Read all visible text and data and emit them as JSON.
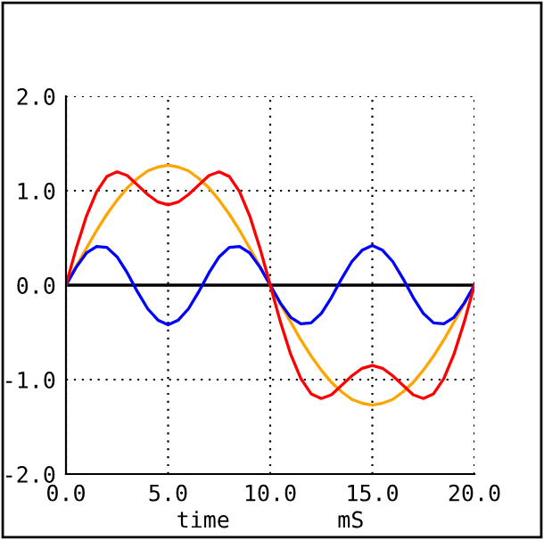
{
  "chart_data": {
    "type": "line",
    "xlabel": "time        mS",
    "x": [
      0,
      0.5,
      1,
      1.5,
      2,
      2.5,
      3,
      3.5,
      4,
      4.5,
      5,
      5.5,
      6,
      6.5,
      7,
      7.5,
      8,
      8.5,
      9,
      9.5,
      10,
      10.5,
      11,
      11.5,
      12,
      12.5,
      13,
      13.5,
      14,
      14.5,
      15,
      15.5,
      16,
      16.5,
      17,
      17.5,
      18,
      18.5,
      19,
      19.5,
      20
    ],
    "series": [
      {
        "color": "#ffa500",
        "values": [
          0,
          0.2,
          0.39,
          0.58,
          0.75,
          0.9,
          1.03,
          1.13,
          1.21,
          1.25,
          1.27,
          1.25,
          1.21,
          1.13,
          1.03,
          0.9,
          0.75,
          0.58,
          0.39,
          0.2,
          0,
          -0.2,
          -0.39,
          -0.58,
          -0.75,
          -0.9,
          -1.03,
          -1.13,
          -1.21,
          -1.25,
          -1.27,
          -1.25,
          -1.21,
          -1.13,
          -1.03,
          -0.9,
          -0.75,
          -0.58,
          -0.39,
          -0.2,
          0
        ]
      },
      {
        "color": "#0000ff",
        "values": [
          0,
          0.19,
          0.34,
          0.41,
          0.4,
          0.3,
          0.13,
          -0.07,
          -0.25,
          -0.37,
          -0.42,
          -0.37,
          -0.25,
          -0.07,
          0.13,
          0.3,
          0.4,
          0.41,
          0.34,
          0.19,
          0,
          -0.19,
          -0.34,
          -0.41,
          -0.4,
          -0.3,
          -0.13,
          0.07,
          0.25,
          0.37,
          0.42,
          0.37,
          0.25,
          0.07,
          -0.13,
          -0.3,
          -0.4,
          -0.41,
          -0.34,
          -0.19,
          0
        ]
      },
      {
        "color": "#ff0000",
        "values": [
          0,
          0.39,
          0.73,
          0.99,
          1.15,
          1.2,
          1.16,
          1.06,
          0.96,
          0.88,
          0.85,
          0.88,
          0.96,
          1.06,
          1.16,
          1.2,
          1.15,
          0.99,
          0.73,
          0.39,
          0,
          -0.39,
          -0.73,
          -0.99,
          -1.15,
          -1.2,
          -1.16,
          -1.06,
          -0.96,
          -0.88,
          -0.85,
          -0.88,
          -0.96,
          -1.06,
          -1.16,
          -1.2,
          -1.15,
          -0.99,
          -0.73,
          -0.39,
          0
        ]
      }
    ],
    "xlim": [
      0,
      20
    ],
    "ylim": [
      -2,
      2
    ],
    "xticks": [
      {
        "value": 0,
        "label": "0.0"
      },
      {
        "value": 5,
        "label": "5.0"
      },
      {
        "value": 10,
        "label": "10.0"
      },
      {
        "value": 15,
        "label": "15.0"
      },
      {
        "value": 20,
        "label": "20.0"
      }
    ],
    "yticks": [
      {
        "value": -2,
        "label": "-2.0"
      },
      {
        "value": -1,
        "label": "-1.0"
      },
      {
        "value": 0,
        "label": "0.0"
      },
      {
        "value": 1,
        "label": "1.0"
      },
      {
        "value": 2,
        "label": "2.0"
      }
    ],
    "ref_lines": [
      {
        "axis": "y",
        "value": 0,
        "color": "#000000"
      }
    ],
    "grid": true,
    "line_style": "solid",
    "legend": false
  }
}
